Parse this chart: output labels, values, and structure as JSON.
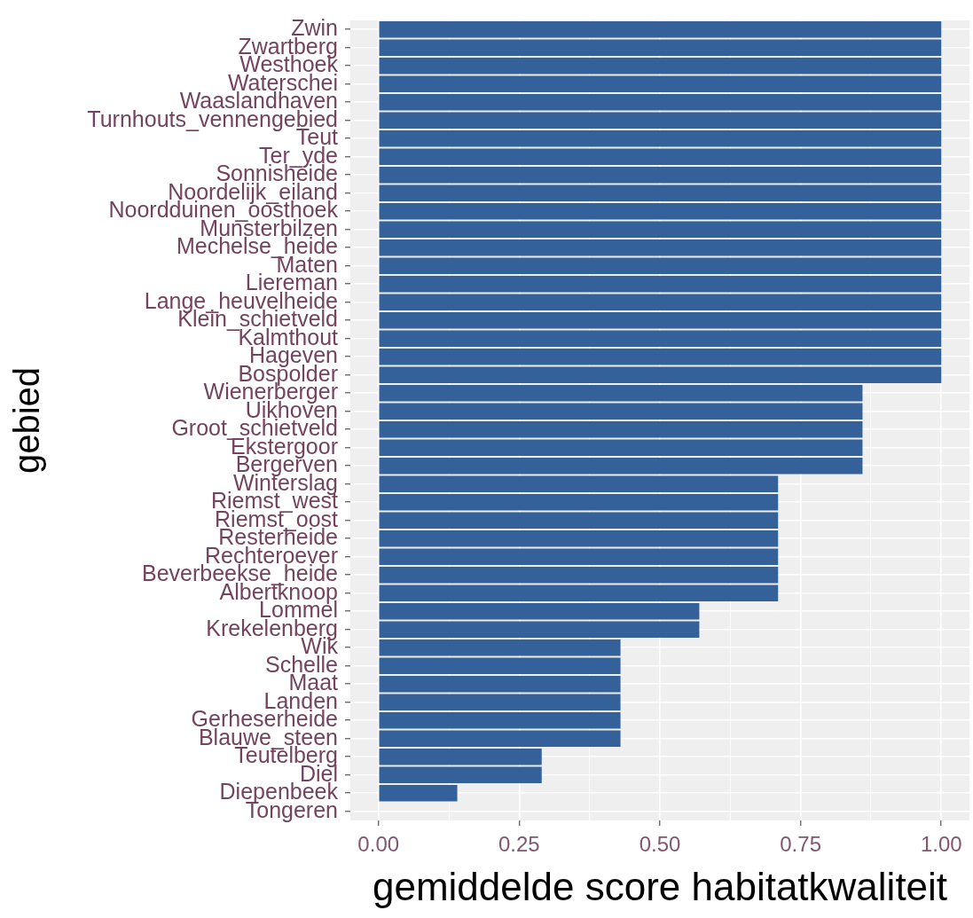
{
  "chart_data": {
    "type": "bar",
    "orientation": "horizontal",
    "xlabel": "gemiddelde score habitatkwaliteit",
    "ylabel": "gebied",
    "categories": [
      "Zwin",
      "Zwartberg",
      "Westhoek",
      "Waterschei",
      "Waaslandhaven",
      "Turnhouts_vennengebied",
      "Teut",
      "Ter_yde",
      "Sonnisheide",
      "Noordelijk_eiland",
      "Noordduinen_oosthoek",
      "Munsterbilzen",
      "Mechelse_heide",
      "Maten",
      "Liereman",
      "Lange_heuvelheide",
      "Klein_schietveld",
      "Kalmthout",
      "Hageven",
      "Bospolder",
      "Wienerberger",
      "Uikhoven",
      "Groot_schietveld",
      "Ekstergoor",
      "Bergerven",
      "Winterslag",
      "Riemst_west",
      "Riemst_oost",
      "Resterheide",
      "Rechteroever",
      "Beverbeekse_heide",
      "Albertknoop",
      "Lommel",
      "Krekelenberg",
      "Wik",
      "Schelle",
      "Maat",
      "Landen",
      "Gerheserheide",
      "Blauwe_steen",
      "Teutelberg",
      "Diel",
      "Diepenbeek",
      "Tongeren"
    ],
    "values": [
      1,
      1,
      1,
      1,
      1,
      1,
      1,
      1,
      1,
      1,
      1,
      1,
      1,
      1,
      1,
      1,
      1,
      1,
      1,
      1,
      0.86,
      0.86,
      0.86,
      0.86,
      0.86,
      0.71,
      0.71,
      0.71,
      0.71,
      0.71,
      0.71,
      0.71,
      0.57,
      0.57,
      0.43,
      0.43,
      0.43,
      0.43,
      0.43,
      0.43,
      0.29,
      0.29,
      0.14,
      0
    ],
    "color": "#35619b",
    "xlim": [
      -0.05,
      1.05
    ],
    "xticks": [
      {
        "value": 0,
        "label": "0.00"
      },
      {
        "value": 0.125,
        "label": null
      },
      {
        "value": 0.25,
        "label": "0.25"
      },
      {
        "value": 0.375,
        "label": null
      },
      {
        "value": 0.5,
        "label": "0.50"
      },
      {
        "value": 0.625,
        "label": null
      },
      {
        "value": 0.75,
        "label": "0.75"
      },
      {
        "value": 0.875,
        "label": null
      },
      {
        "value": 1,
        "label": "1.00"
      }
    ],
    "grid": true
  }
}
